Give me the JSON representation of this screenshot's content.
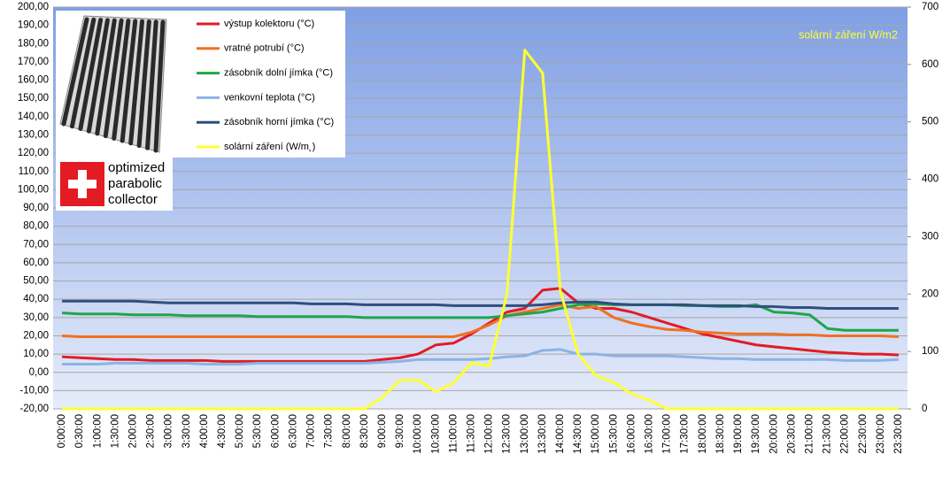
{
  "chart_data": {
    "type": "line",
    "annotation": "solární záření W/m2",
    "logo_text": [
      "optimized",
      "parabolic",
      "collector"
    ],
    "categories": [
      "0:00:00",
      "0:30:00",
      "1:00:00",
      "1:30:00",
      "2:00:00",
      "2:30:00",
      "3:00:00",
      "3:30:00",
      "4:00:00",
      "4:30:00",
      "5:00:00",
      "5:30:00",
      "6:00:00",
      "6:30:00",
      "7:00:00",
      "7:30:00",
      "8:00:00",
      "8:30:00",
      "9:00:00",
      "9:30:00",
      "10:00:00",
      "10:30:00",
      "11:00:00",
      "11:30:00",
      "12:00:00",
      "12:30:00",
      "13:00:00",
      "13:30:00",
      "14:00:00",
      "14:30:00",
      "15:00:00",
      "15:30:00",
      "16:00:00",
      "16:30:00",
      "17:00:00",
      "17:30:00",
      "18:00:00",
      "18:30:00",
      "19:00:00",
      "19:30:00",
      "20:00:00",
      "20:30:00",
      "21:00:00",
      "21:30:00",
      "22:00:00",
      "22:30:00",
      "23:00:00",
      "23:30:00"
    ],
    "series": [
      {
        "name": "výstup kolektoru (°C)",
        "color": "#e31b23",
        "values": [
          8.5,
          8,
          7.5,
          7,
          7,
          6.5,
          6.5,
          6.5,
          6.5,
          6,
          6,
          6,
          6,
          6,
          6,
          6,
          6,
          6,
          7,
          8,
          10,
          15,
          16,
          21,
          27,
          33,
          35,
          45,
          46,
          38,
          35,
          35,
          33,
          30,
          27,
          24,
          21,
          19,
          17,
          15,
          14,
          13,
          12,
          11,
          10.5,
          10,
          10,
          9.5
        ]
      },
      {
        "name": "vratné potrubí (°C)",
        "color": "#f07022",
        "values": [
          20,
          19.5,
          19.5,
          19.5,
          19.5,
          19.5,
          19.5,
          19.5,
          19.5,
          19.5,
          19.5,
          19.5,
          19.5,
          19.5,
          19.5,
          19.5,
          19.5,
          19.5,
          19.5,
          19.5,
          19.5,
          19.5,
          19.5,
          22,
          26,
          31,
          33,
          35,
          37,
          35,
          36,
          30,
          27,
          25,
          23.5,
          23,
          22,
          21.5,
          21,
          21,
          21,
          20.5,
          20.5,
          20,
          20,
          20,
          20,
          19.5
        ]
      },
      {
        "name": "zásobník dolní jímka (°C)",
        "color": "#1fa64a",
        "values": [
          32.5,
          32,
          32,
          32,
          31.5,
          31.5,
          31.5,
          31,
          31,
          31,
          31,
          30.5,
          30.5,
          30.5,
          30.5,
          30.5,
          30.5,
          30,
          30,
          30,
          30,
          30,
          30,
          30,
          30,
          31,
          32,
          33,
          35,
          37,
          37.5,
          37,
          37,
          37,
          37,
          36.5,
          36.5,
          36,
          36,
          37,
          33,
          32.5,
          31.5,
          24,
          23,
          23,
          23,
          23
        ]
      },
      {
        "name": "venkovní teplota (°C)",
        "color": "#8db3e2",
        "values": [
          4.5,
          4.5,
          4.5,
          5,
          5,
          5,
          5,
          5,
          4.5,
          4.5,
          4.5,
          5,
          5,
          5,
          5,
          5,
          5,
          5,
          5.5,
          6,
          7,
          7,
          7,
          7,
          7.5,
          8.5,
          9,
          12,
          12.5,
          10,
          10,
          9,
          9,
          9,
          9,
          8.5,
          8,
          7.5,
          7.5,
          7,
          7,
          7,
          7,
          7,
          6.5,
          6.5,
          6.5,
          7
        ]
      },
      {
        "name": "zásobník horní jímka (°C)",
        "color": "#2e4f7e",
        "values": [
          39,
          39,
          39,
          39,
          39,
          38.5,
          38,
          38,
          38,
          38,
          38,
          38,
          38,
          38,
          37.5,
          37.5,
          37.5,
          37,
          37,
          37,
          37,
          37,
          36.5,
          36.5,
          36.5,
          36.5,
          36.5,
          37,
          38,
          38.5,
          38.5,
          37.5,
          37,
          37,
          37,
          37,
          36.5,
          36.5,
          36.5,
          36,
          36,
          35.5,
          35.5,
          35,
          35,
          35,
          35,
          35
        ]
      },
      {
        "name": "solární záření (W/m˛)",
        "color": "#ffff33",
        "axis": "y2",
        "values": [
          0,
          0,
          0,
          0,
          0,
          0,
          0,
          0,
          0,
          0,
          0,
          0,
          0,
          0,
          0,
          0,
          0,
          0,
          20,
          50,
          50,
          30,
          45,
          80,
          75,
          200,
          625,
          585,
          205,
          95,
          58,
          46,
          26,
          15,
          0,
          0,
          0,
          0,
          0,
          0,
          0,
          0,
          0,
          0,
          0,
          0,
          0,
          0
        ]
      }
    ],
    "ylim": [
      -20,
      200
    ],
    "yticks": [
      {
        "value": -20,
        "label": "-20,00"
      },
      {
        "value": -10,
        "label": "-10,00"
      },
      {
        "value": 0,
        "label": "0,00"
      },
      {
        "value": 10,
        "label": "10,00"
      },
      {
        "value": 20,
        "label": "20,00"
      },
      {
        "value": 30,
        "label": "30,00"
      },
      {
        "value": 40,
        "label": "40,00"
      },
      {
        "value": 50,
        "label": "50,00"
      },
      {
        "value": 60,
        "label": "60,00"
      },
      {
        "value": 70,
        "label": "70,00"
      },
      {
        "value": 80,
        "label": "80,00"
      },
      {
        "value": 90,
        "label": "90,00"
      },
      {
        "value": 100,
        "label": "100,00"
      },
      {
        "value": 110,
        "label": "110,00"
      },
      {
        "value": 120,
        "label": "120,00"
      },
      {
        "value": 130,
        "label": "130,00"
      },
      {
        "value": 140,
        "label": "140,00"
      },
      {
        "value": 150,
        "label": "150,00"
      },
      {
        "value": 160,
        "label": "160,00"
      },
      {
        "value": 170,
        "label": "170,00"
      },
      {
        "value": 180,
        "label": "180,00"
      },
      {
        "value": 190,
        "label": "190,00"
      },
      {
        "value": 200,
        "label": "200,00"
      }
    ],
    "y2lim": [
      0,
      700
    ],
    "y2ticks": [
      0,
      100,
      200,
      300,
      400,
      500,
      600,
      700
    ],
    "grid": true
  }
}
